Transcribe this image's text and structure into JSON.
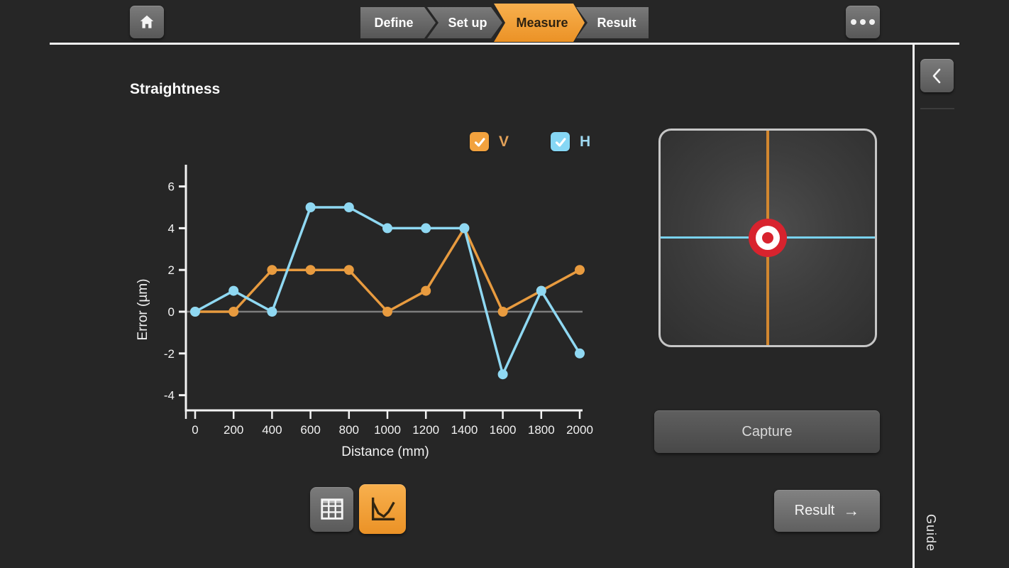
{
  "topbar": {
    "steps": [
      {
        "label": "Define",
        "active": false
      },
      {
        "label": "Set up",
        "active": false
      },
      {
        "label": "Measure",
        "active": true
      },
      {
        "label": "Result",
        "active": false
      }
    ]
  },
  "page": {
    "title": "Straightness"
  },
  "legend": {
    "items": [
      {
        "label": "V",
        "checked": true,
        "color": "#F2A23E"
      },
      {
        "label": "H",
        "checked": true,
        "color": "#86D7F5"
      }
    ]
  },
  "chart_data": {
    "type": "line",
    "x": [
      0,
      200,
      400,
      600,
      800,
      1000,
      1200,
      1400,
      1600,
      1800,
      2000
    ],
    "series": [
      {
        "name": "V",
        "color": "#E89B3F",
        "values": [
          0,
          0,
          2,
          2,
          2,
          0,
          1,
          4,
          0,
          1,
          2
        ]
      },
      {
        "name": "H",
        "color": "#8FD8F2",
        "values": [
          0,
          1,
          0,
          5,
          5,
          4,
          4,
          4,
          -3,
          1,
          -2
        ]
      }
    ],
    "xlabel": "Distance (mm)",
    "ylabel": "Error (µm)",
    "yticks": [
      -4,
      -2,
      0,
      2,
      4,
      6
    ],
    "ylim": [
      -4.8,
      7
    ],
    "xlim": [
      0,
      2000
    ],
    "zero_line": true,
    "grid": false,
    "legend_position": "top-right",
    "axis_color": "#F2F2F2",
    "zero_line_color": "#7D7D7D"
  },
  "target_display": {
    "vertical_line_color": "#D2872F",
    "horizontal_line_color": "#79D2EE",
    "bullseye_outer_color": "#D8232E",
    "bullseye_ring_color": "#FFFFFF"
  },
  "actions": {
    "capture_label": "Capture",
    "result_label": "Result",
    "result_arrow": "→"
  },
  "view_toggle": {
    "table_active": false,
    "chart_active": true
  },
  "guide": {
    "label": "Guide"
  }
}
